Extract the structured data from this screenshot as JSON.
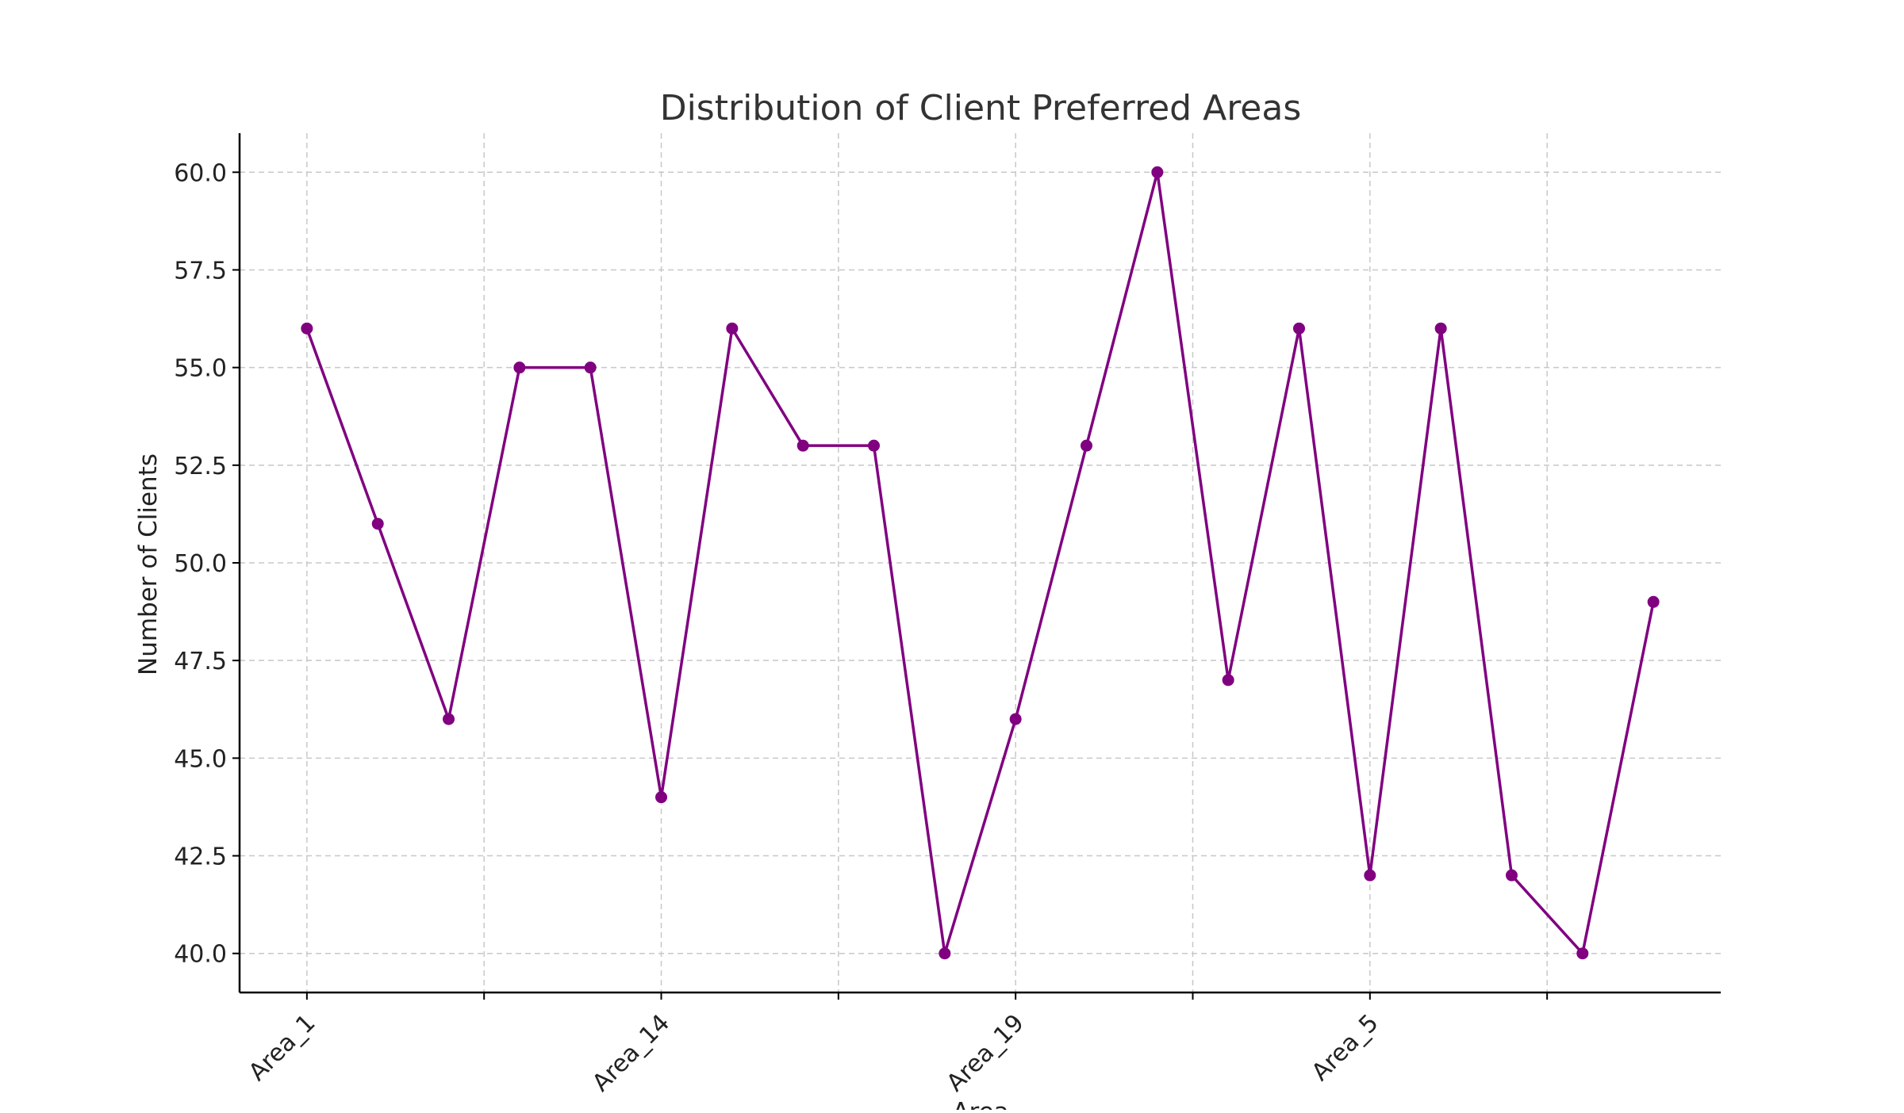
{
  "chart_data": {
    "type": "line",
    "title": "Distribution of Client Preferred Areas",
    "xlabel": "Area",
    "ylabel": "Number of Clients",
    "categories": [
      "Area_1",
      "",
      "",
      "",
      "",
      "Area_14",
      "",
      "",
      "",
      "",
      "Area_19",
      "",
      "",
      "",
      "",
      "Area_5",
      "",
      "",
      "",
      ""
    ],
    "tick_labels": [
      "Area_1",
      "",
      "Area_14",
      "",
      "Area_19",
      "",
      "Area_5",
      ""
    ],
    "x": [
      0,
      1,
      2,
      3,
      4,
      5,
      6,
      7,
      8,
      9,
      10,
      11,
      12,
      13,
      14,
      15,
      16,
      17,
      18,
      19
    ],
    "values": [
      56,
      51,
      46,
      55,
      55,
      44,
      56,
      53,
      53,
      40,
      46,
      53,
      60,
      47,
      56,
      42,
      56,
      42,
      40,
      49
    ],
    "xlim": [
      -0.95,
      19.95
    ],
    "x_ticks": [
      0,
      2.5,
      5,
      7.5,
      10,
      12.5,
      15,
      17.5
    ],
    "ylim": [
      39,
      61
    ],
    "y_ticks": [
      40.0,
      42.5,
      45.0,
      47.5,
      50.0,
      52.5,
      55.0,
      57.5,
      60.0
    ],
    "y_tick_labels": [
      "40.0",
      "42.5",
      "45.0",
      "47.5",
      "50.0",
      "52.5",
      "55.0",
      "57.5",
      "60.0"
    ],
    "grid": true,
    "legend": false,
    "color": "#800080",
    "marker": "circle"
  }
}
